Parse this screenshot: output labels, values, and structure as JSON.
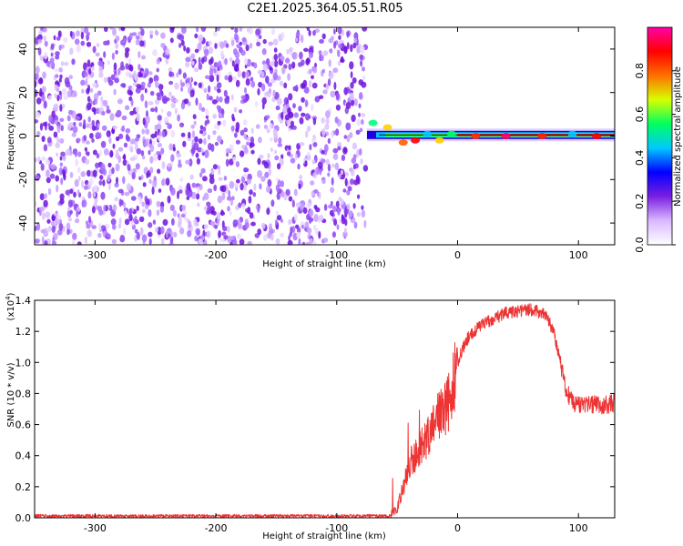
{
  "title": "C2E1.2025.364.05.51.R05",
  "chart_data": [
    {
      "type": "heatmap",
      "name": "spectrogram",
      "xlabel": "Height of straight line (km)",
      "ylabel": "Frequency (Hz)",
      "xlim": [
        -350,
        130
      ],
      "ylim": [
        -50,
        50
      ],
      "x_ticks": [
        -300,
        -200,
        -100,
        0,
        100
      ],
      "y_ticks": [
        -40,
        -20,
        0,
        20,
        40
      ],
      "noise_region_x": [
        -350,
        -75
      ],
      "signal_line_freq_hz": 0.5,
      "colorbar": {
        "label": "Normalized spectral amplitude",
        "range": [
          0,
          1
        ],
        "ticks": [
          0.0,
          0.2,
          0.4,
          0.6,
          0.8
        ],
        "tick_labels": [
          "0.0",
          "0.2",
          "0.4",
          "0.6",
          "0.8"
        ],
        "colors": [
          "#ffffff",
          "#d9b8ff",
          "#7a1fe0",
          "#0000ff",
          "#00c8ff",
          "#00ff60",
          "#d8ff00",
          "#ff7000",
          "#ff0000",
          "#ff00a8"
        ]
      }
    },
    {
      "type": "line",
      "name": "snr",
      "xlabel": "Height of straight line (km)",
      "ylabel": "SNR (10 * v/v)",
      "multiplier_label": "(x10",
      "multiplier_exp": "4",
      "xlim": [
        -350,
        130
      ],
      "ylim": [
        0,
        1.4
      ],
      "x_ticks": [
        -300,
        -200,
        -100,
        0,
        100
      ],
      "y_ticks": [
        0.0,
        0.2,
        0.4,
        0.6,
        0.8,
        1.0,
        1.2,
        1.4
      ],
      "y_tick_labels": [
        "0.0",
        "0.2",
        "0.4",
        "0.6",
        "0.8",
        "1.0",
        "1.2",
        "1.4"
      ],
      "line_color": "#ee3333",
      "x": [
        -350,
        -300,
        -250,
        -200,
        -150,
        -100,
        -60,
        -50,
        -45,
        -40,
        -35,
        -30,
        -25,
        -20,
        -15,
        -10,
        -5,
        0,
        5,
        10,
        20,
        30,
        40,
        50,
        60,
        70,
        75,
        80,
        85,
        90,
        95,
        100,
        110,
        120,
        130
      ],
      "values": [
        0.01,
        0.01,
        0.01,
        0.01,
        0.01,
        0.01,
        0.01,
        0.05,
        0.2,
        0.35,
        0.4,
        0.45,
        0.5,
        0.6,
        0.65,
        0.7,
        0.8,
        1.0,
        1.1,
        1.18,
        1.24,
        1.28,
        1.32,
        1.33,
        1.34,
        1.32,
        1.28,
        1.18,
        1.0,
        0.82,
        0.74,
        0.72,
        0.73,
        0.72,
        0.74
      ]
    }
  ]
}
